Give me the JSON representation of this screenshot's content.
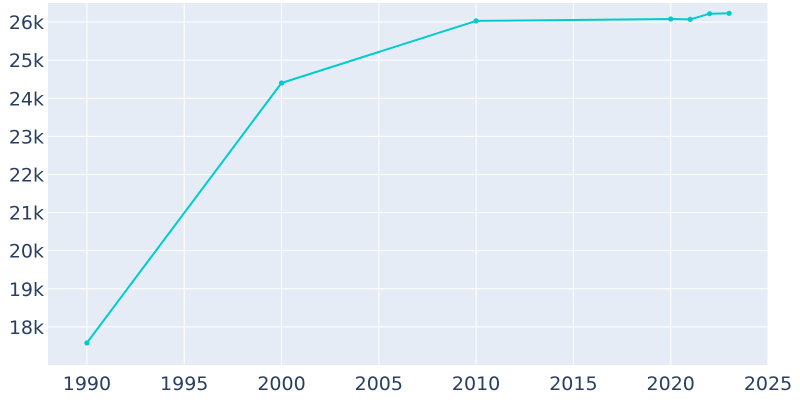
{
  "chart_data": {
    "type": "line",
    "title": "",
    "xlabel": "",
    "ylabel": "",
    "xlim": [
      1988,
      2025
    ],
    "ylim": [
      17000,
      26500
    ],
    "x_ticks": [
      1990,
      1995,
      2000,
      2005,
      2010,
      2015,
      2020,
      2025
    ],
    "y_ticks": [
      18000,
      19000,
      20000,
      21000,
      22000,
      23000,
      24000,
      25000,
      26000
    ],
    "x_tick_labels": [
      "1990",
      "1995",
      "2000",
      "2005",
      "2010",
      "2015",
      "2020",
      "2025"
    ],
    "y_tick_labels": [
      "18k",
      "19k",
      "20k",
      "21k",
      "22k",
      "23k",
      "24k",
      "25k",
      "26k"
    ],
    "grid": true,
    "colors": {
      "line": "#00cccc",
      "plot_bg": "#e5ecf6",
      "grid": "#ffffff",
      "text": "#2a3f5f"
    },
    "series": [
      {
        "x": [
          1990,
          2000,
          2010,
          2020,
          2021,
          2022,
          2023
        ],
        "y": [
          17580,
          24400,
          26030,
          26080,
          26070,
          26220,
          26230
        ]
      }
    ]
  }
}
